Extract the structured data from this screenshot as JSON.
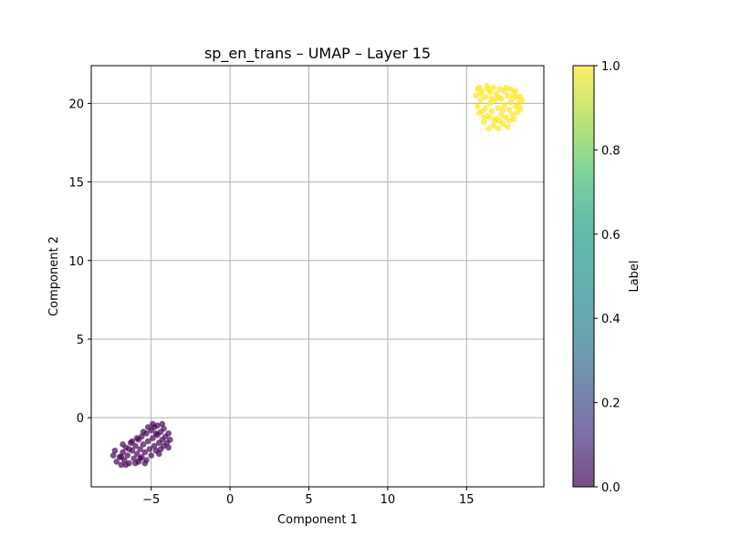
{
  "chart_data": {
    "type": "scatter",
    "title": "sp_en_trans – UMAP – Layer 15",
    "xlabel": "Component 1",
    "ylabel": "Component 2",
    "xlim": [
      -8.8,
      19.9
    ],
    "ylim": [
      -4.4,
      22.4
    ],
    "xticks": [
      -5,
      0,
      5,
      10,
      15
    ],
    "yticks": [
      0,
      5,
      10,
      15,
      20
    ],
    "xtick_labels": [
      "−5",
      "0",
      "5",
      "10",
      "15"
    ],
    "ytick_labels": [
      "0",
      "5",
      "10",
      "15",
      "20"
    ],
    "grid": true,
    "colorbar": {
      "label": "Label",
      "range": [
        0.0,
        1.0
      ],
      "colormap": "viridis",
      "alpha": 0.7,
      "ticks": [
        0.0,
        0.2,
        0.4,
        0.6,
        0.8,
        1.0
      ],
      "tick_labels": [
        "0.0",
        "0.2",
        "0.4",
        "0.6",
        "0.8",
        "1.0"
      ]
    },
    "series": [
      {
        "label_value": 0,
        "color": "#440154",
        "points": [
          [
            -7.4,
            -2.4
          ],
          [
            -7.2,
            -2.8
          ],
          [
            -7.0,
            -2.5
          ],
          [
            -6.9,
            -3.0
          ],
          [
            -6.8,
            -2.2
          ],
          [
            -6.7,
            -2.7
          ],
          [
            -6.6,
            -1.9
          ],
          [
            -6.5,
            -2.4
          ],
          [
            -6.4,
            -2.9
          ],
          [
            -6.3,
            -1.6
          ],
          [
            -6.2,
            -2.1
          ],
          [
            -6.1,
            -2.6
          ],
          [
            -6.0,
            -1.8
          ],
          [
            -5.9,
            -2.3
          ],
          [
            -5.8,
            -1.4
          ],
          [
            -5.8,
            -2.8
          ],
          [
            -5.7,
            -2.0
          ],
          [
            -5.6,
            -1.2
          ],
          [
            -5.6,
            -2.5
          ],
          [
            -5.5,
            -1.7
          ],
          [
            -5.4,
            -2.2
          ],
          [
            -5.3,
            -1.0
          ],
          [
            -5.3,
            -2.7
          ],
          [
            -5.2,
            -1.5
          ],
          [
            -5.1,
            -2.0
          ],
          [
            -5.0,
            -0.8
          ],
          [
            -5.0,
            -2.4
          ],
          [
            -4.9,
            -1.3
          ],
          [
            -4.8,
            -1.8
          ],
          [
            -4.8,
            -0.6
          ],
          [
            -4.7,
            -2.1
          ],
          [
            -4.6,
            -1.1
          ],
          [
            -4.6,
            -0.5
          ],
          [
            -4.5,
            -1.6
          ],
          [
            -4.4,
            -0.9
          ],
          [
            -4.4,
            -2.0
          ],
          [
            -4.3,
            -1.4
          ],
          [
            -4.2,
            -0.7
          ],
          [
            -4.2,
            -1.8
          ],
          [
            -4.1,
            -1.2
          ],
          [
            -4.0,
            -1.6
          ],
          [
            -3.9,
            -1.0
          ],
          [
            -3.9,
            -1.9
          ],
          [
            -3.8,
            -1.4
          ],
          [
            -6.6,
            -3.0
          ],
          [
            -6.0,
            -2.9
          ],
          [
            -5.2,
            -0.6
          ],
          [
            -4.9,
            -0.4
          ],
          [
            -6.8,
            -1.7
          ],
          [
            -5.5,
            -0.9
          ],
          [
            -5.9,
            -1.3
          ],
          [
            -6.4,
            -2.0
          ],
          [
            -4.5,
            -2.3
          ],
          [
            -5.7,
            -2.6
          ],
          [
            -6.2,
            -1.5
          ],
          [
            -4.3,
            -0.4
          ],
          [
            -7.3,
            -2.1
          ],
          [
            -6.9,
            -2.5
          ],
          [
            -5.4,
            -2.9
          ],
          [
            -4.7,
            -1.0
          ]
        ]
      },
      {
        "label_value": 1,
        "color": "#fde725",
        "points": [
          [
            15.6,
            20.5
          ],
          [
            15.7,
            19.8
          ],
          [
            15.8,
            21.0
          ],
          [
            15.9,
            20.2
          ],
          [
            16.0,
            19.5
          ],
          [
            16.0,
            20.8
          ],
          [
            16.1,
            18.8
          ],
          [
            16.2,
            20.4
          ],
          [
            16.3,
            19.2
          ],
          [
            16.3,
            21.1
          ],
          [
            16.4,
            18.4
          ],
          [
            16.5,
            20.0
          ],
          [
            16.5,
            20.7
          ],
          [
            16.6,
            19.5
          ],
          [
            16.7,
            18.6
          ],
          [
            16.7,
            21.0
          ],
          [
            16.8,
            20.2
          ],
          [
            16.9,
            19.0
          ],
          [
            16.9,
            20.6
          ],
          [
            17.0,
            18.4
          ],
          [
            17.0,
            19.7
          ],
          [
            17.1,
            20.9
          ],
          [
            17.2,
            19.3
          ],
          [
            17.2,
            20.3
          ],
          [
            17.3,
            18.7
          ],
          [
            17.4,
            20.8
          ],
          [
            17.4,
            19.9
          ],
          [
            17.5,
            19.1
          ],
          [
            17.6,
            20.5
          ],
          [
            17.6,
            18.5
          ],
          [
            17.7,
            19.6
          ],
          [
            17.8,
            20.9
          ],
          [
            17.8,
            20.1
          ],
          [
            17.9,
            19.3
          ],
          [
            18.0,
            20.6
          ],
          [
            18.0,
            19.0
          ],
          [
            18.1,
            19.8
          ],
          [
            18.2,
            20.4
          ],
          [
            18.2,
            19.4
          ],
          [
            18.3,
            20.0
          ],
          [
            18.4,
            19.6
          ],
          [
            18.5,
            20.2
          ],
          [
            15.8,
            19.4
          ],
          [
            16.2,
            19.7
          ],
          [
            16.8,
            18.9
          ],
          [
            17.5,
            21.0
          ],
          [
            16.4,
            20.9
          ],
          [
            17.1,
            18.9
          ],
          [
            18.1,
            20.8
          ],
          [
            15.9,
            20.6
          ],
          [
            16.6,
            20.3
          ],
          [
            17.3,
            19.6
          ],
          [
            17.7,
            18.9
          ],
          [
            16.1,
            19.1
          ],
          [
            18.3,
            19.8
          ],
          [
            17.9,
            20.3
          ],
          [
            16.5,
            19.1
          ],
          [
            17.0,
            20.4
          ],
          [
            15.7,
            20.9
          ],
          [
            18.4,
            20.4
          ]
        ]
      }
    ]
  }
}
